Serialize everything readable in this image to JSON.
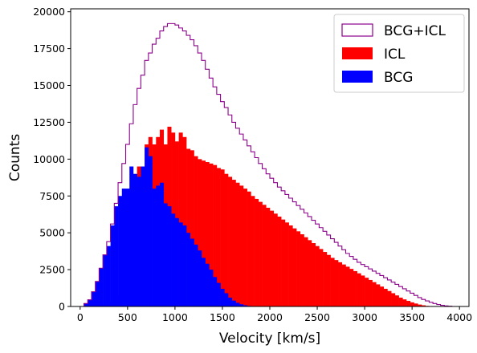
{
  "chart_data": {
    "type": "histogram",
    "title": "",
    "xlabel": "Velocity [km/s]",
    "ylabel": "Counts",
    "xlim": [
      -100,
      4100
    ],
    "ylim": [
      0,
      20200
    ],
    "xticks": [
      0,
      500,
      1000,
      1500,
      2000,
      2500,
      3000,
      3500,
      4000
    ],
    "yticks": [
      0,
      2500,
      5000,
      7500,
      10000,
      12500,
      15000,
      17500,
      20000
    ],
    "grid": false,
    "legend_position": "top-right",
    "bin_width": 40,
    "bin_start": 0,
    "series": [
      {
        "name": "BCG+ICL",
        "style": "step",
        "color": "#8b008b",
        "values": [
          0,
          200,
          450,
          1000,
          1700,
          2600,
          3500,
          4400,
          5600,
          7000,
          8400,
          9700,
          11000,
          12400,
          13700,
          14800,
          15700,
          16700,
          17200,
          17800,
          18200,
          18700,
          19000,
          19200,
          19200,
          19100,
          18900,
          18700,
          18400,
          18100,
          17700,
          17200,
          16700,
          16100,
          15500,
          14900,
          14400,
          13900,
          13500,
          13000,
          12500,
          12100,
          11700,
          11300,
          10900,
          10500,
          10100,
          9700,
          9350,
          9000,
          8700,
          8400,
          8100,
          7850,
          7600,
          7350,
          7100,
          6850,
          6600,
          6350,
          6100,
          5850,
          5600,
          5350,
          5100,
          4850,
          4600,
          4350,
          4100,
          3850,
          3600,
          3400,
          3200,
          3000,
          2850,
          2700,
          2550,
          2400,
          2250,
          2100,
          1950,
          1800,
          1650,
          1500,
          1350,
          1200,
          1050,
          900,
          750,
          600,
          480,
          380,
          280,
          200,
          130,
          80,
          40,
          15,
          0,
          0,
          0
        ]
      },
      {
        "name": "ICL",
        "style": "filled",
        "color": "#ff0000",
        "values": [
          0,
          0,
          0,
          0,
          0,
          50,
          100,
          200,
          350,
          550,
          800,
          1200,
          1700,
          2200,
          8000,
          9500,
          9000,
          11000,
          11500,
          11000,
          11500,
          12000,
          11000,
          12200,
          11800,
          11200,
          11800,
          11500,
          10700,
          10600,
          10200,
          10000,
          9900,
          9800,
          9700,
          9600,
          9400,
          9300,
          9000,
          8800,
          8600,
          8400,
          8200,
          8000,
          7800,
          7500,
          7300,
          7100,
          6900,
          6700,
          6500,
          6300,
          6100,
          5900,
          5700,
          5500,
          5300,
          5100,
          4900,
          4700,
          4500,
          4300,
          4100,
          3900,
          3700,
          3500,
          3300,
          3150,
          3000,
          2850,
          2700,
          2550,
          2400,
          2250,
          2100,
          1950,
          1800,
          1650,
          1500,
          1350,
          1200,
          1050,
          900,
          750,
          600,
          480,
          380,
          280,
          200,
          130,
          80,
          40,
          15,
          0,
          0,
          0,
          0,
          0,
          0,
          0,
          0
        ]
      },
      {
        "name": "BCG",
        "style": "filled",
        "color": "#0000ff",
        "values": [
          0,
          200,
          450,
          1000,
          1700,
          2600,
          3500,
          4100,
          5500,
          6800,
          7500,
          8000,
          8000,
          9500,
          9000,
          8800,
          9500,
          10800,
          10200,
          8000,
          8200,
          8400,
          7000,
          6800,
          6300,
          6000,
          5700,
          5500,
          5000,
          4600,
          4200,
          3800,
          3300,
          2900,
          2500,
          2000,
          1600,
          1200,
          900,
          600,
          400,
          250,
          150,
          80,
          40,
          20,
          10,
          5,
          0,
          0,
          0,
          0,
          0,
          0,
          0,
          0,
          0,
          0,
          0,
          0,
          0,
          0,
          0,
          0,
          0,
          0,
          0,
          0,
          0,
          0,
          0,
          0,
          0,
          0,
          0,
          0,
          0,
          0,
          0,
          0,
          0,
          0,
          0,
          0,
          0,
          0,
          0,
          0,
          0,
          0,
          0,
          0,
          0,
          0,
          0,
          0,
          0,
          0,
          0,
          0,
          0
        ]
      }
    ],
    "legend_entries": [
      {
        "label": "BCG+ICL",
        "color": "#8b008b",
        "style": "outline"
      },
      {
        "label": "ICL",
        "color": "#ff0000",
        "style": "filled"
      },
      {
        "label": "BCG",
        "color": "#0000ff",
        "style": "filled"
      }
    ]
  }
}
